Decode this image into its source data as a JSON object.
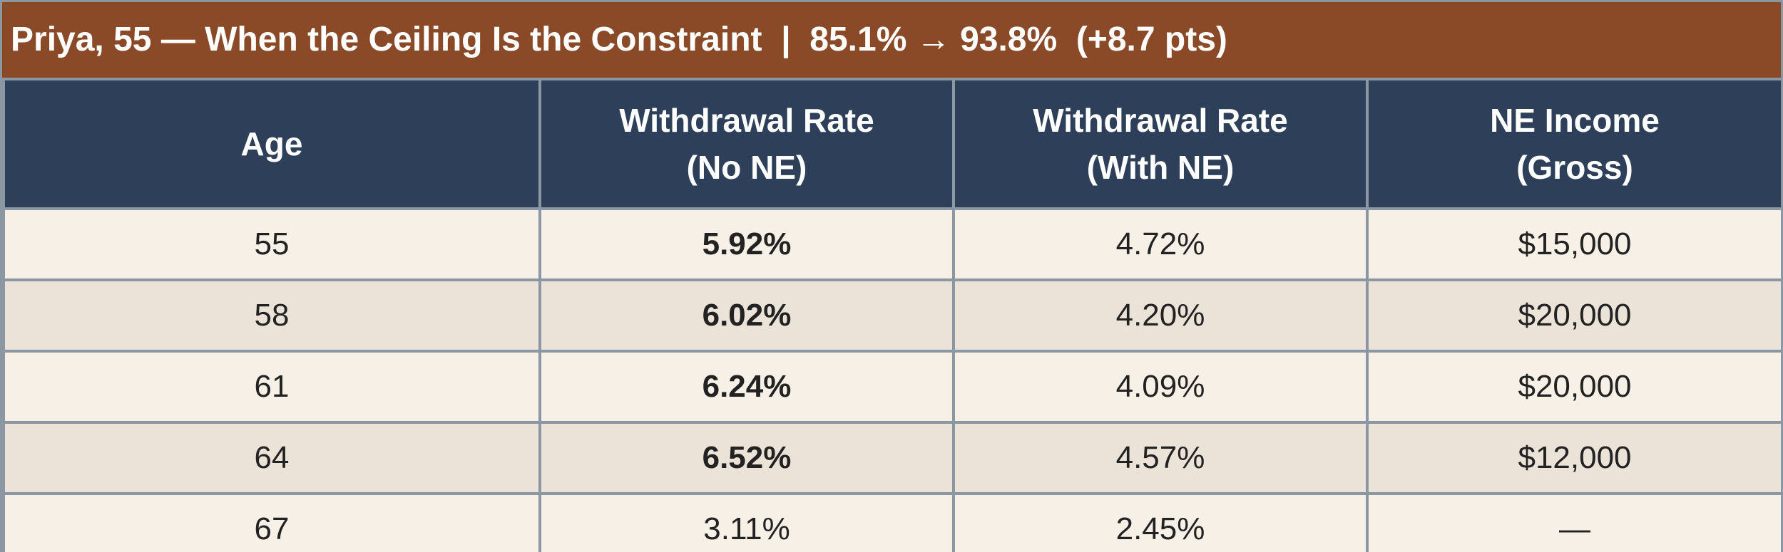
{
  "title": "Priya, 55 — When the Ceiling Is the Constraint  |  85.1% → 93.8%  (+8.7 pts)",
  "colors": {
    "title_bg": "#8b4a27",
    "header_bg": "#2e4059",
    "row_light": "#f7f0e7",
    "row_dark": "#ebe2d8",
    "highlight_text": "#c1392b",
    "grid_line": "#8c97a4"
  },
  "table": {
    "headers": [
      {
        "line1": "Age",
        "line2": ""
      },
      {
        "line1": "Withdrawal Rate",
        "line2": "(No NE)"
      },
      {
        "line1": "Withdrawal Rate",
        "line2": "(With NE)"
      },
      {
        "line1": "NE Income",
        "line2": "(Gross)"
      }
    ],
    "rows": [
      {
        "age": "55",
        "no_ne": "5.92%",
        "with_ne": "4.72%",
        "ne_income": "$15,000",
        "highlight": true
      },
      {
        "age": "58",
        "no_ne": "6.02%",
        "with_ne": "4.20%",
        "ne_income": "$20,000",
        "highlight": true
      },
      {
        "age": "61",
        "no_ne": "6.24%",
        "with_ne": "4.09%",
        "ne_income": "$20,000",
        "highlight": true
      },
      {
        "age": "64",
        "no_ne": "6.52%",
        "with_ne": "4.57%",
        "ne_income": "$12,000",
        "highlight": true
      },
      {
        "age": "67",
        "no_ne": "3.11%",
        "with_ne": "2.45%",
        "ne_income": "—",
        "highlight": false
      }
    ]
  }
}
